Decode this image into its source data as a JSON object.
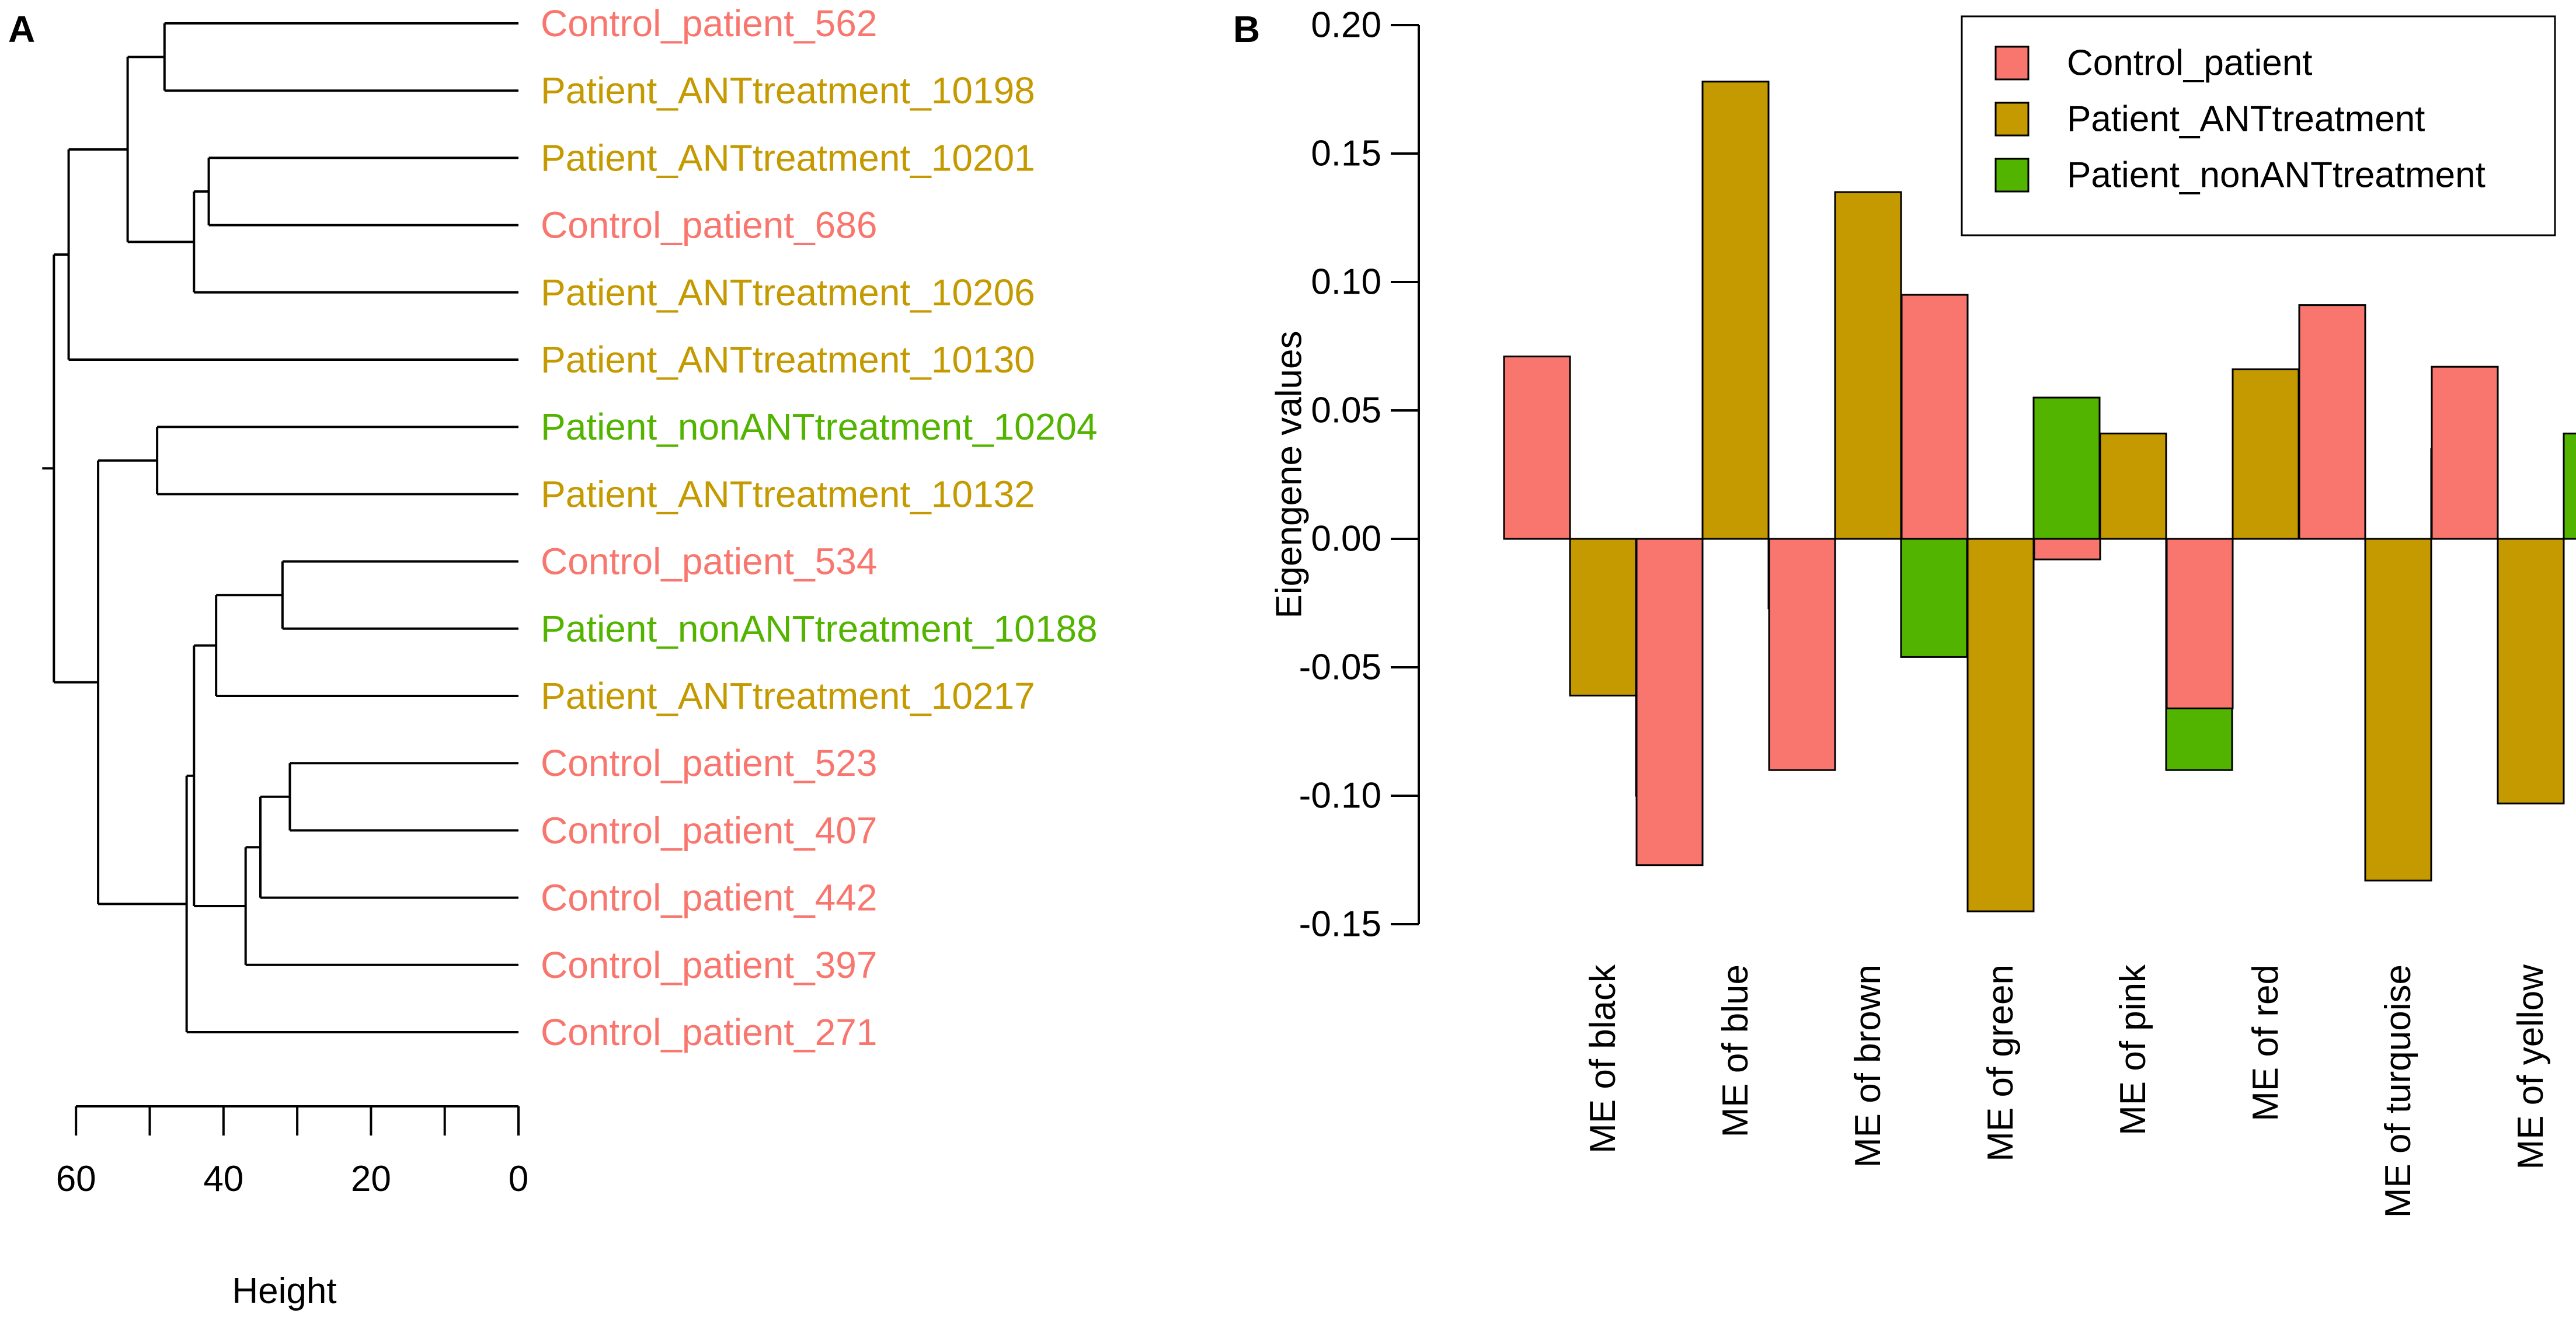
{
  "colors": {
    "Control_patient": "#F8766D",
    "Patient_ANTtreatment": "#C49A00",
    "Patient_nonANTtreatment": "#53B400"
  },
  "chart_data": [
    {
      "panel": "A",
      "type": "dendrogram",
      "xlabel": "Height",
      "x_ticks": [
        60,
        40,
        20,
        0
      ],
      "x_range": [
        60,
        0
      ],
      "leaves": [
        {
          "label": "Control_patient_562",
          "group": "Control_patient"
        },
        {
          "label": "Patient_ANTtreatment_10198",
          "group": "Patient_ANTtreatment"
        },
        {
          "label": "Patient_ANTtreatment_10201",
          "group": "Patient_ANTtreatment"
        },
        {
          "label": "Control_patient_686",
          "group": "Control_patient"
        },
        {
          "label": "Patient_ANTtreatment_10206",
          "group": "Patient_ANTtreatment"
        },
        {
          "label": "Patient_ANTtreatment_10130",
          "group": "Patient_ANTtreatment"
        },
        {
          "label": "Patient_nonANTtreatment_10204",
          "group": "Patient_nonANTtreatment"
        },
        {
          "label": "Patient_ANTtreatment_10132",
          "group": "Patient_ANTtreatment"
        },
        {
          "label": "Control_patient_534",
          "group": "Control_patient"
        },
        {
          "label": "Patient_nonANTtreatment_10188",
          "group": "Patient_nonANTtreatment"
        },
        {
          "label": "Patient_ANTtreatment_10217",
          "group": "Patient_ANTtreatment"
        },
        {
          "label": "Control_patient_523",
          "group": "Control_patient"
        },
        {
          "label": "Control_patient_407",
          "group": "Control_patient"
        },
        {
          "label": "Control_patient_442",
          "group": "Control_patient"
        },
        {
          "label": "Control_patient_397",
          "group": "Control_patient"
        },
        {
          "label": "Control_patient_271",
          "group": "Control_patient"
        }
      ],
      "merges": [
        {
          "a": "L0",
          "b": "L1",
          "height": 48
        },
        {
          "a": "L2",
          "b": "L3",
          "height": 42
        },
        {
          "a": "M1",
          "b": "L4",
          "height": 44
        },
        {
          "a": "M0",
          "b": "M2",
          "height": 53
        },
        {
          "a": "M3",
          "b": "L5",
          "height": 61
        },
        {
          "a": "L6",
          "b": "L7",
          "height": 49
        },
        {
          "a": "L8",
          "b": "L9",
          "height": 32
        },
        {
          "a": "M6",
          "b": "L10",
          "height": 41
        },
        {
          "a": "L11",
          "b": "L12",
          "height": 31
        },
        {
          "a": "M8",
          "b": "L13",
          "height": 35
        },
        {
          "a": "M9",
          "b": "L14",
          "height": 37
        },
        {
          "a": "M7",
          "b": "M10",
          "height": 44
        },
        {
          "a": "M11",
          "b": "L15",
          "height": 45
        },
        {
          "a": "M5",
          "b": "M12",
          "height": 57
        },
        {
          "a": "M4",
          "b": "M13",
          "height": 63
        }
      ]
    },
    {
      "panel": "B",
      "type": "bar",
      "ylabel": "Eigengene values",
      "ylim": [
        -0.15,
        0.2
      ],
      "y_ticks": [
        "-0.15",
        "-0.10",
        "-0.05",
        "0.00",
        "0.05",
        "0.10",
        "0.15",
        "0.20"
      ],
      "categories": [
        "ME of black",
        "ME of blue",
        "ME of brown",
        "ME of green",
        "ME of pink",
        "ME of red",
        "ME of turquoise",
        "ME of yellow"
      ],
      "series": [
        {
          "name": "Control_patient",
          "values": [
            0.071,
            -0.127,
            -0.09,
            0.095,
            -0.008,
            -0.066,
            0.091,
            0.067
          ]
        },
        {
          "name": "Patient_ANTtreatment",
          "values": [
            -0.061,
            0.178,
            0.135,
            -0.145,
            0.041,
            0.066,
            -0.133,
            -0.103
          ]
        },
        {
          "name": "Patient_nonANTtreatment",
          "values": [
            -0.1,
            -0.027,
            -0.046,
            0.055,
            -0.09,
            0.063,
            0.035,
            0.041
          ]
        }
      ],
      "legend": {
        "position": "top-right",
        "entries": [
          "Control_patient",
          "Patient_ANTtreatment",
          "Patient_nonANTtreatment"
        ]
      }
    }
  ]
}
